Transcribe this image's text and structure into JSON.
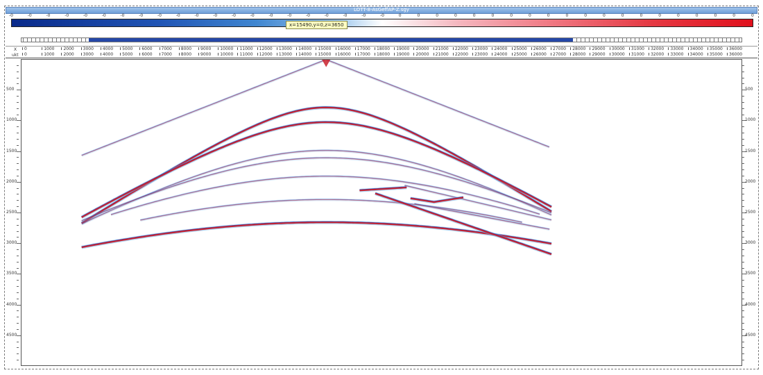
{
  "window": {
    "title": "LOTT-8-AsGeffAP-Z.sgy"
  },
  "colorbar": {
    "tick_label": "0",
    "tick_count": 41,
    "colors": [
      "#0a2a8a",
      "#2055b5",
      "#3f86d0",
      "#9cc6ec",
      "#ffffff",
      "#f4b8c0",
      "#f07c86",
      "#e53a44",
      "#e0101c"
    ]
  },
  "tooltip": {
    "text": "x=15490,y=0,z=3650"
  },
  "x_axis": {
    "row1_label": "X",
    "row2_label": "ukt",
    "ticks": [
      0,
      1000,
      2000,
      3000,
      4000,
      5000,
      6000,
      7000,
      8000,
      9000,
      10000,
      11000,
      12000,
      13000,
      14000,
      15000,
      16000,
      17000,
      18000,
      19000,
      20000,
      21000,
      22000,
      23000,
      24000,
      25000,
      26000,
      27000,
      28000,
      29000,
      30000,
      31000,
      32000,
      33000,
      34000,
      35000,
      36000
    ]
  },
  "y_axis": {
    "ticks": [
      500,
      1000,
      1500,
      2000,
      2500,
      3000,
      3500,
      4000,
      4500
    ]
  },
  "section": {
    "source_x": 15490,
    "source_z": 0,
    "event_color_pos": "#c8202c",
    "event_color_neg": "#1f3fb0",
    "event_color_halo": "#6fb0e8"
  }
}
